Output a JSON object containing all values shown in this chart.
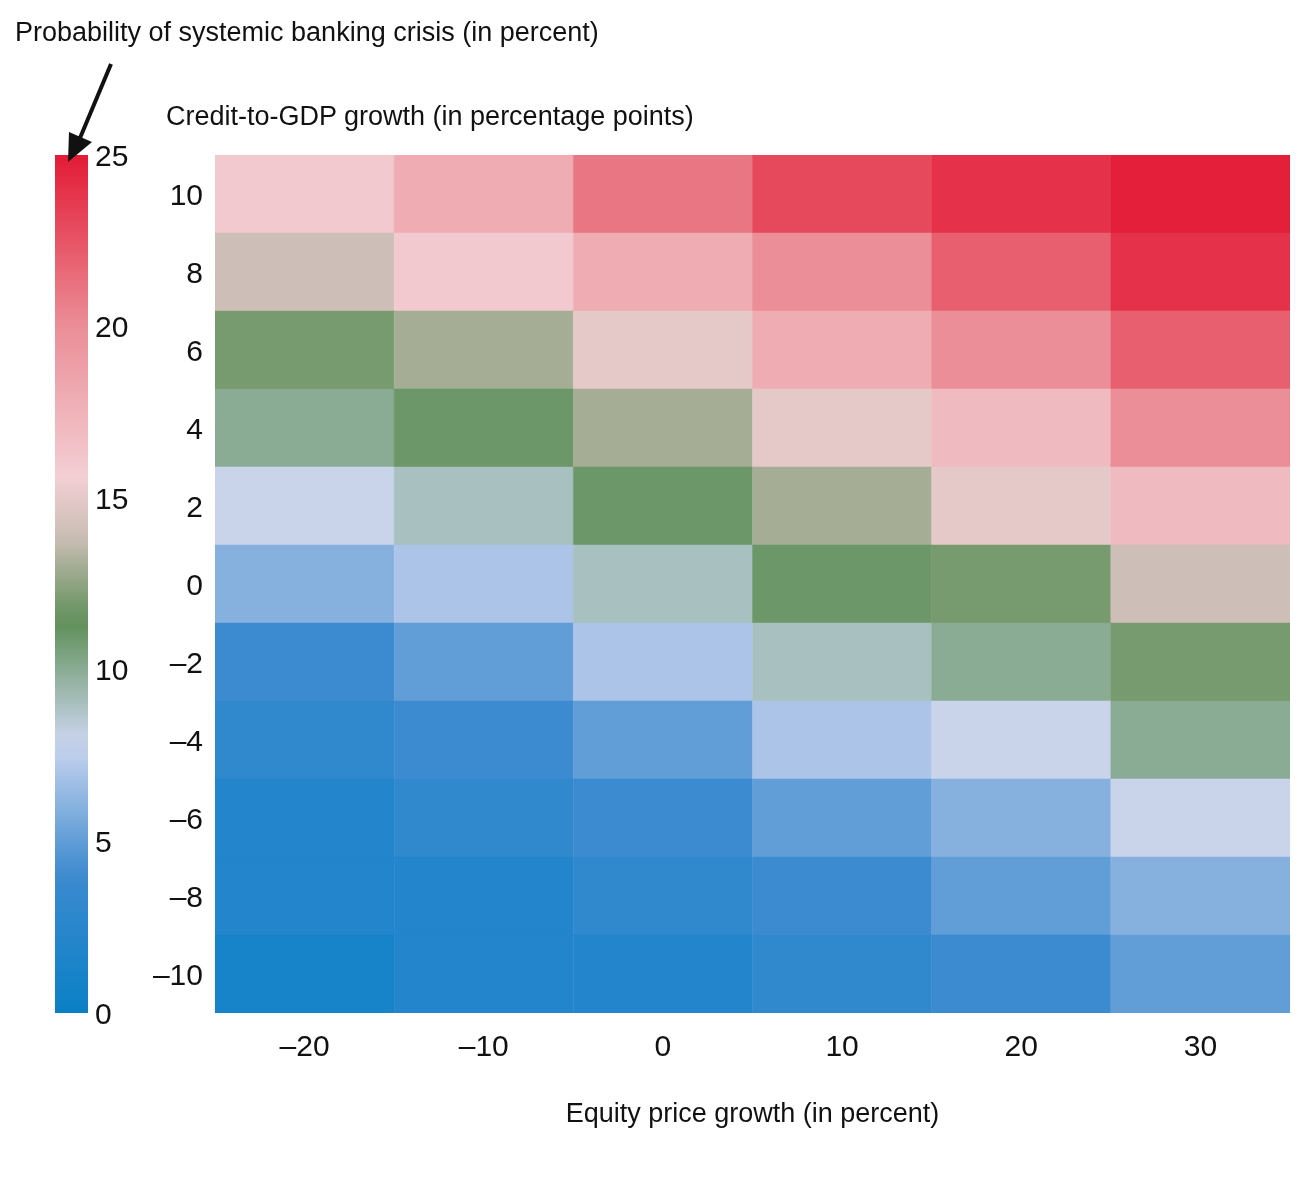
{
  "chart_data": {
    "type": "heatmap",
    "clabel": "Probability of systemic banking crisis (in percent)",
    "ylabel": "Credit-to-GDP growth (in percentage points)",
    "xlabel": "Equity price growth (in percent)",
    "categories": [
      "–20",
      "–10",
      "0",
      "10",
      "20",
      "30"
    ],
    "y_categories": [
      "10",
      "8",
      "6",
      "4",
      "2",
      "0",
      "–2",
      "–4",
      "–6",
      "–8",
      "–10"
    ],
    "clim": [
      0,
      25
    ],
    "cticks": [
      0,
      5,
      10,
      15,
      20,
      25
    ],
    "cells": [
      [
        16,
        18,
        21,
        23,
        24,
        24.8
      ],
      [
        14,
        16,
        18,
        20,
        22,
        24
      ],
      [
        12,
        13,
        15,
        18,
        20,
        22
      ],
      [
        10,
        11,
        13,
        15,
        17,
        20
      ],
      [
        8,
        9,
        11,
        13,
        15,
        17
      ],
      [
        6,
        7,
        9,
        11,
        12,
        14
      ],
      [
        4,
        5,
        7,
        9,
        10,
        12
      ],
      [
        3,
        4,
        5,
        7,
        8,
        10
      ],
      [
        2,
        3,
        4,
        5,
        6,
        8
      ],
      [
        2,
        2,
        3,
        4,
        5,
        6
      ],
      [
        1,
        2,
        2,
        3,
        4,
        5
      ]
    ]
  }
}
